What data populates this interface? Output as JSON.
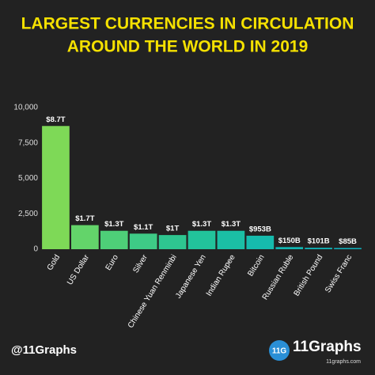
{
  "chart_data": {
    "type": "bar",
    "title": [
      "LARGEST CURRENCIES IN CIRCULATION",
      "AROUND THE WORLD IN 2019"
    ],
    "categories": [
      "Gold",
      "US Dollar",
      "Euro",
      "Silver",
      "Chinese Yuan Renminbi",
      "Japanese Yen",
      "Indian Rupee",
      "Bitcoin",
      "Russian Ruble",
      "British Pound",
      "Swiss Franc"
    ],
    "values": [
      8700,
      1700,
      1300,
      1100,
      1000,
      1300,
      1300,
      953,
      150,
      101,
      85
    ],
    "value_labels": [
      "$8.7T",
      "$1.7T",
      "$1.3T",
      "$1.1T",
      "$1T",
      "$1.3T",
      "$1.3T",
      "$953B",
      "$150B",
      "$101B",
      "$85B"
    ],
    "colors": [
      "#7ed957",
      "#63d46a",
      "#4ecf78",
      "#3ecb86",
      "#2ec690",
      "#22c39b",
      "#1bbfa5",
      "#16bbad",
      "#12b7b3",
      "#10b3b8",
      "#0fb0bc"
    ],
    "ylim": [
      0,
      10000
    ],
    "yticks": [
      0,
      {
        "value": 2500,
        "label": "2,500"
      },
      {
        "value": 5000,
        "label": "5,000"
      },
      {
        "value": 7500,
        "label": "7,500"
      },
      {
        "value": 10000,
        "label": "10,000"
      }
    ],
    "grid": false
  },
  "footer": {
    "handle": "@11Graphs",
    "logo": "11G",
    "brand": "11Graphs",
    "url": "11graphs.com"
  }
}
